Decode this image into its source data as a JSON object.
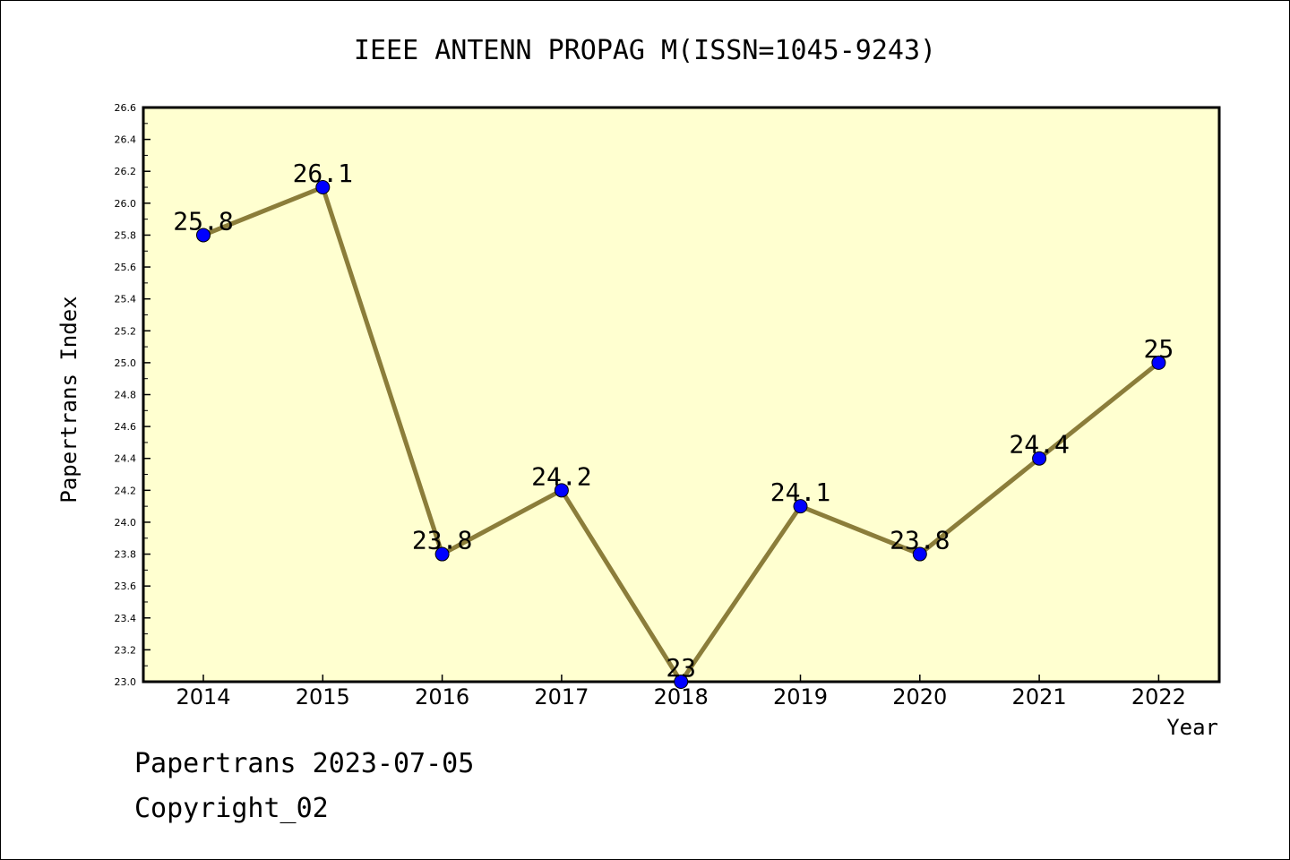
{
  "chart_data": {
    "type": "line",
    "title": "IEEE ANTENN PROPAG M(ISSN=1045-9243)",
    "xlabel": "Year",
    "ylabel": "Papertrans Index",
    "x": [
      "2014",
      "2015",
      "2016",
      "2017",
      "2018",
      "2019",
      "2020",
      "2021",
      "2022"
    ],
    "values": [
      25.8,
      26.1,
      23.8,
      24.2,
      23.0,
      24.1,
      23.8,
      24.4,
      25.0
    ],
    "data_labels": [
      "25.8",
      "26.1",
      "23.8",
      "24.2",
      "23",
      "24.1",
      "23.8",
      "24.4",
      "25"
    ],
    "ylim": [
      23.0,
      26.6
    ],
    "yticks": [
      "23.0",
      "23.2",
      "23.4",
      "23.6",
      "23.8",
      "24.0",
      "24.2",
      "24.4",
      "24.6",
      "24.8",
      "25.0",
      "25.2",
      "25.4",
      "25.6",
      "25.8",
      "26.0",
      "26.2",
      "26.4",
      "26.6"
    ],
    "grid": false,
    "legend": "none",
    "colors": {
      "plot_background": "#ffffd0",
      "line": "#8b7d3a",
      "marker": "#0000ff"
    }
  },
  "footer": {
    "line1": "Papertrans 2023-07-05",
    "line2": "Copyright_02"
  }
}
